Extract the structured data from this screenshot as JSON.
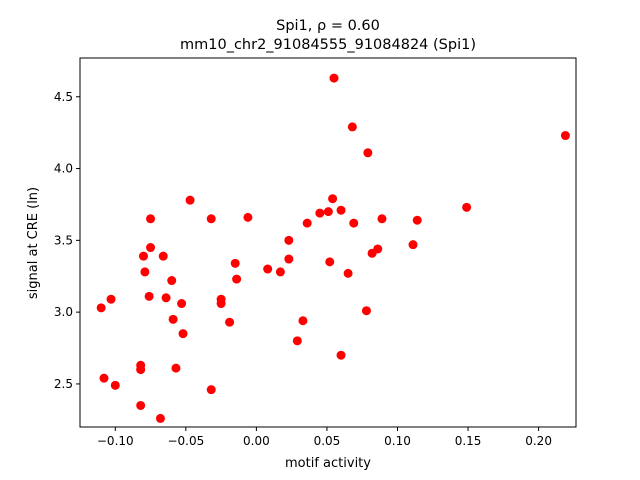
{
  "chart_data": {
    "type": "scatter",
    "title_line1": "Spi1, ρ = 0.60",
    "title_line2": "mm10_chr2_91084555_91084824 (Spi1)",
    "xlabel": "motif activity",
    "ylabel": "signal at CRE (ln)",
    "xlim": [
      -0.125,
      0.2265
    ],
    "ylim": [
      2.2,
      4.77
    ],
    "xticks": [
      -0.1,
      -0.05,
      0.0,
      0.05,
      0.1,
      0.15,
      0.2
    ],
    "xtick_labels": [
      "−0.10",
      "−0.05",
      "0.00",
      "0.05",
      "0.10",
      "0.15",
      "0.20"
    ],
    "yticks": [
      2.5,
      3.0,
      3.5,
      4.0,
      4.5
    ],
    "ytick_labels": [
      "2.5",
      "3.0",
      "3.5",
      "4.0",
      "4.5"
    ],
    "marker_color": "#ff0000",
    "points": [
      {
        "x": -0.11,
        "y": 3.03
      },
      {
        "x": -0.108,
        "y": 2.54
      },
      {
        "x": -0.103,
        "y": 3.09
      },
      {
        "x": -0.1,
        "y": 2.49
      },
      {
        "x": -0.082,
        "y": 2.6
      },
      {
        "x": -0.082,
        "y": 2.63
      },
      {
        "x": -0.082,
        "y": 2.35
      },
      {
        "x": -0.08,
        "y": 3.39
      },
      {
        "x": -0.079,
        "y": 3.28
      },
      {
        "x": -0.076,
        "y": 3.11
      },
      {
        "x": -0.075,
        "y": 3.65
      },
      {
        "x": -0.075,
        "y": 3.45
      },
      {
        "x": -0.068,
        "y": 2.26
      },
      {
        "x": -0.066,
        "y": 3.39
      },
      {
        "x": -0.064,
        "y": 3.1
      },
      {
        "x": -0.06,
        "y": 3.22
      },
      {
        "x": -0.059,
        "y": 2.95
      },
      {
        "x": -0.057,
        "y": 2.61
      },
      {
        "x": -0.053,
        "y": 3.06
      },
      {
        "x": -0.052,
        "y": 2.85
      },
      {
        "x": -0.047,
        "y": 3.78
      },
      {
        "x": -0.032,
        "y": 3.65
      },
      {
        "x": -0.032,
        "y": 2.46
      },
      {
        "x": -0.025,
        "y": 3.09
      },
      {
        "x": -0.025,
        "y": 3.06
      },
      {
        "x": -0.019,
        "y": 2.93
      },
      {
        "x": -0.015,
        "y": 3.34
      },
      {
        "x": -0.014,
        "y": 3.23
      },
      {
        "x": -0.006,
        "y": 3.66
      },
      {
        "x": 0.008,
        "y": 3.3
      },
      {
        "x": 0.017,
        "y": 3.28
      },
      {
        "x": 0.023,
        "y": 3.37
      },
      {
        "x": 0.023,
        "y": 3.5
      },
      {
        "x": 0.029,
        "y": 2.8
      },
      {
        "x": 0.033,
        "y": 2.94
      },
      {
        "x": 0.036,
        "y": 3.62
      },
      {
        "x": 0.045,
        "y": 3.69
      },
      {
        "x": 0.051,
        "y": 3.7
      },
      {
        "x": 0.052,
        "y": 3.35
      },
      {
        "x": 0.054,
        "y": 3.79
      },
      {
        "x": 0.055,
        "y": 4.63
      },
      {
        "x": 0.06,
        "y": 3.71
      },
      {
        "x": 0.06,
        "y": 2.7
      },
      {
        "x": 0.065,
        "y": 3.27
      },
      {
        "x": 0.068,
        "y": 4.29
      },
      {
        "x": 0.069,
        "y": 3.62
      },
      {
        "x": 0.078,
        "y": 3.01
      },
      {
        "x": 0.079,
        "y": 4.11
      },
      {
        "x": 0.082,
        "y": 3.41
      },
      {
        "x": 0.086,
        "y": 3.44
      },
      {
        "x": 0.089,
        "y": 3.65
      },
      {
        "x": 0.111,
        "y": 3.47
      },
      {
        "x": 0.114,
        "y": 3.64
      },
      {
        "x": 0.149,
        "y": 3.73
      },
      {
        "x": 0.219,
        "y": 4.23
      }
    ]
  }
}
